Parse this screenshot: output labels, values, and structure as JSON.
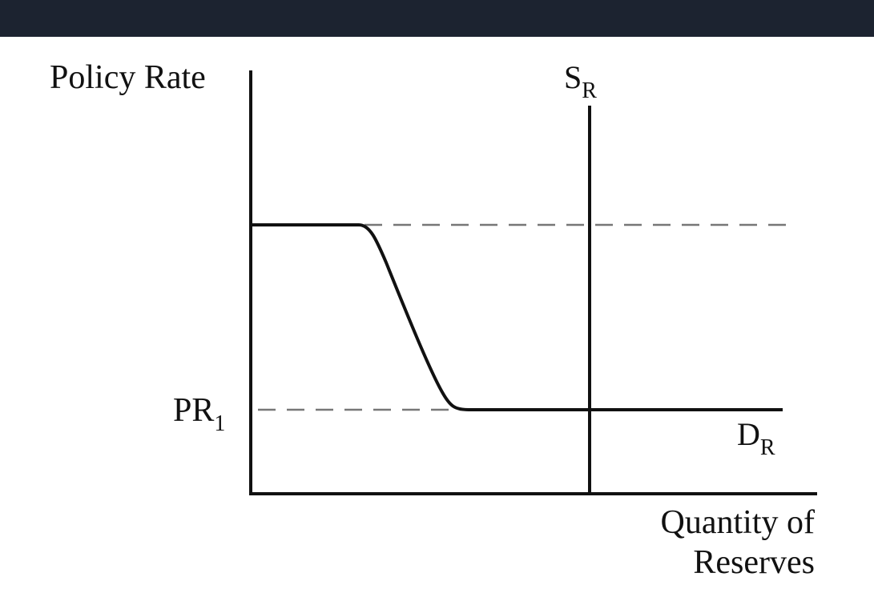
{
  "colors": {
    "topbar": "#1c2330",
    "ink": "#111111",
    "dashed": "#777777",
    "background": "#ffffff"
  },
  "labels": {
    "y_axis": "Policy Rate",
    "x_axis_line1": "Quantity of",
    "x_axis_line2": "Reserves",
    "supply_main": "S",
    "supply_sub": "R",
    "demand_main": "D",
    "demand_sub": "R",
    "pr_main": "PR",
    "pr_sub": "1"
  }
}
